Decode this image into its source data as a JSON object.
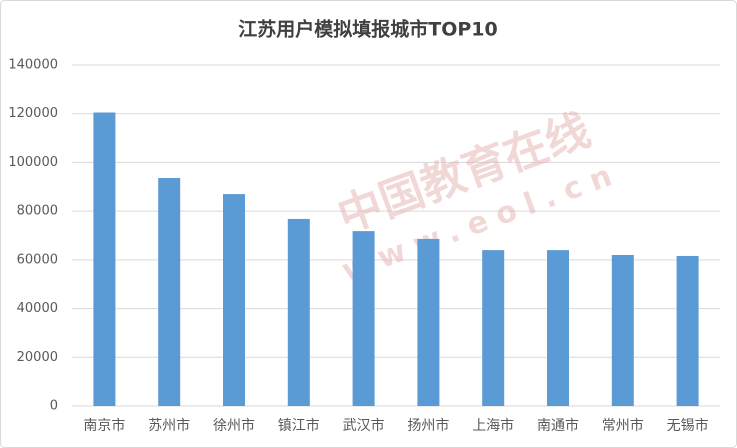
{
  "chart_data": {
    "type": "bar",
    "title": "江苏用户模拟填报城市TOP10",
    "categories": [
      "南京市",
      "苏州市",
      "徐州市",
      "镇江市",
      "武汉市",
      "扬州市",
      "上海市",
      "南通市",
      "常州市",
      "无锡市"
    ],
    "values": [
      120500,
      93600,
      87000,
      76800,
      71800,
      68600,
      64000,
      64000,
      62000,
      61600
    ],
    "color": "#5b9bd5",
    "ylim": [
      0,
      140000
    ],
    "yticks": [
      0,
      20000,
      40000,
      60000,
      80000,
      100000,
      120000,
      140000
    ],
    "grid": true,
    "watermark": [
      "中国教育在线",
      "www.eol.cn"
    ]
  }
}
